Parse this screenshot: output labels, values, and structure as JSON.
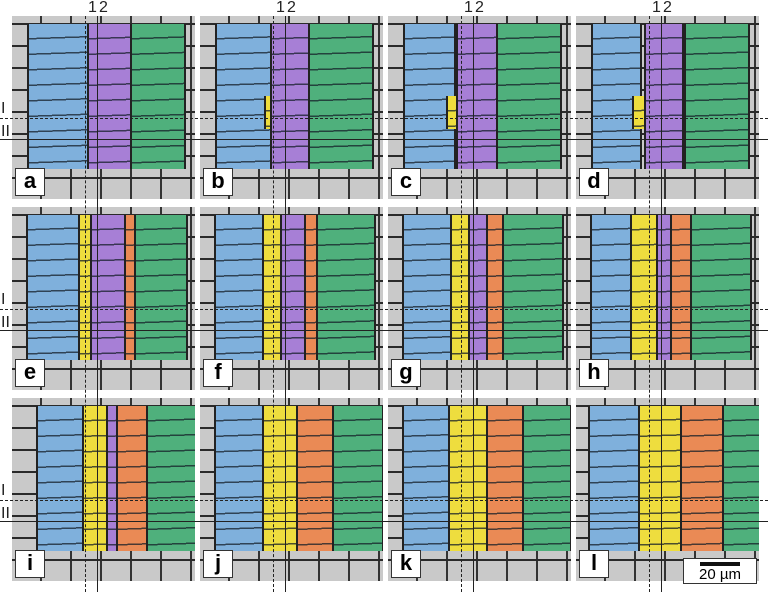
{
  "colors": {
    "blue": "#7fb0dc",
    "purple": "#a77fd6",
    "green": "#4fb07c",
    "yellow": "#eedd3e",
    "orange": "#ea8a55"
  },
  "line_labels": {
    "vertical_dashed": "1",
    "vertical_solid": "2",
    "horizontal_dashed": "I",
    "horizontal_solid": "II"
  },
  "panels": [
    {
      "label": "a",
      "regions": [
        "blue",
        "purple",
        "green"
      ]
    },
    {
      "label": "b",
      "regions": [
        "blue",
        "yellow",
        "purple",
        "green"
      ]
    },
    {
      "label": "c",
      "regions": [
        "blue",
        "yellow",
        "purple",
        "green"
      ]
    },
    {
      "label": "d",
      "regions": [
        "blue",
        "yellow",
        "purple",
        "green"
      ]
    },
    {
      "label": "e",
      "regions": [
        "blue",
        "yellow",
        "purple",
        "orange",
        "green"
      ]
    },
    {
      "label": "f",
      "regions": [
        "blue",
        "yellow",
        "purple",
        "orange",
        "green"
      ]
    },
    {
      "label": "g",
      "regions": [
        "blue",
        "yellow",
        "purple",
        "orange",
        "green"
      ]
    },
    {
      "label": "h",
      "regions": [
        "blue",
        "yellow",
        "purple",
        "orange",
        "green"
      ]
    },
    {
      "label": "i",
      "regions": [
        "blue",
        "yellow",
        "purple",
        "orange",
        "green"
      ]
    },
    {
      "label": "j",
      "regions": [
        "blue",
        "yellow",
        "orange",
        "green"
      ]
    },
    {
      "label": "k",
      "regions": [
        "blue",
        "yellow",
        "orange",
        "green"
      ]
    },
    {
      "label": "l",
      "regions": [
        "blue",
        "yellow",
        "orange",
        "green"
      ]
    }
  ],
  "scale_bar": {
    "label": "20 µm"
  }
}
